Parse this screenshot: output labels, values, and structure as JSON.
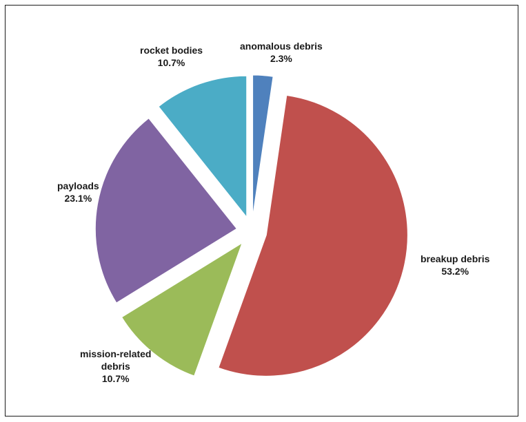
{
  "chart_data": {
    "type": "pie",
    "title": "",
    "start_angle_deg": -90,
    "direction": "clockwise",
    "slices": [
      {
        "name": "anomalous debris",
        "value": 2.3,
        "label_lines": [
          "anomalous debris"
        ],
        "value_label": "2.3%",
        "color": "#4f81bd",
        "exploded": true
      },
      {
        "name": "breakup debris",
        "value": 53.2,
        "label_lines": [
          "breakup debris"
        ],
        "value_label": "53.2%",
        "color": "#c0504d",
        "exploded": true
      },
      {
        "name": "mission-related debris",
        "value": 10.7,
        "label_lines": [
          "mission-related",
          "debris"
        ],
        "value_label": "10.7%",
        "color": "#9bbb59",
        "exploded": true
      },
      {
        "name": "payloads",
        "value": 23.1,
        "label_lines": [
          "payloads"
        ],
        "value_label": "23.1%",
        "color": "#8064a2",
        "exploded": true
      },
      {
        "name": "rocket bodies",
        "value": 10.7,
        "label_lines": [
          "rocket bodies"
        ],
        "value_label": "10.7%",
        "color": "#4bacc6",
        "exploded": true
      }
    ]
  }
}
